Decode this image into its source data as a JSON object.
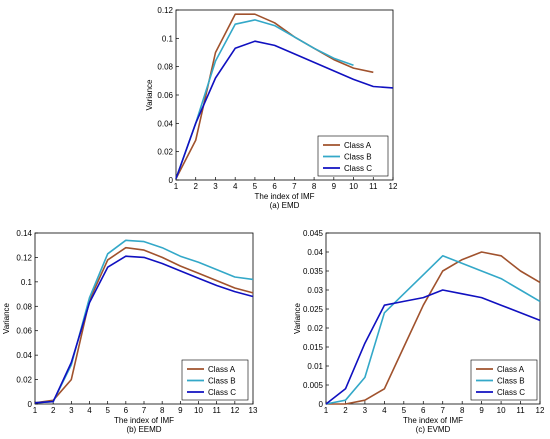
{
  "chart_data": [
    {
      "type": "line",
      "caption": "(a) EMD",
      "xlabel": "The index of IMF",
      "ylabel": "Variance",
      "xlim": [
        1,
        12
      ],
      "ylim": [
        0,
        0.12
      ],
      "xticks": [
        "1",
        "2",
        "3",
        "4",
        "5",
        "6",
        "7",
        "8",
        "9",
        "10",
        "11",
        "12"
      ],
      "yticks": [
        "0",
        "0.02",
        "0.04",
        "0.06",
        "0.08",
        "0.1",
        "0.12"
      ],
      "legend_position": "bottom-right",
      "grid": false,
      "x": [
        1,
        2,
        3,
        4,
        5,
        6,
        7,
        8,
        9,
        10,
        11,
        12
      ],
      "series": [
        {
          "name": "Class A",
          "color": "#a0522d",
          "x": [
            1,
            2,
            3,
            4,
            5,
            6,
            7,
            8,
            9,
            10,
            11
          ],
          "values": [
            0.001,
            0.028,
            0.09,
            0.117,
            0.117,
            0.111,
            0.101,
            0.093,
            0.085,
            0.079,
            0.076
          ]
        },
        {
          "name": "Class B",
          "color": "#33a8c8",
          "x": [
            1,
            2,
            3,
            4,
            5,
            6,
            7,
            8,
            9,
            10
          ],
          "values": [
            0.001,
            0.04,
            0.084,
            0.11,
            0.113,
            0.109,
            0.101,
            0.093,
            0.086,
            0.081
          ]
        },
        {
          "name": "Class C",
          "color": "#1010c0",
          "x": [
            1,
            2,
            3,
            4,
            5,
            6,
            7,
            8,
            9,
            10,
            11,
            12
          ],
          "values": [
            0.001,
            0.04,
            0.072,
            0.093,
            0.098,
            0.095,
            0.089,
            0.083,
            0.077,
            0.071,
            0.066,
            0.065
          ]
        }
      ]
    },
    {
      "type": "line",
      "caption": "(b) EEMD",
      "xlabel": "The index of IMF",
      "ylabel": "Variance",
      "xlim": [
        1,
        13
      ],
      "ylim": [
        0,
        0.14
      ],
      "xticks": [
        "1",
        "2",
        "3",
        "4",
        "5",
        "6",
        "7",
        "8",
        "9",
        "10",
        "11",
        "12",
        "13"
      ],
      "yticks": [
        "0",
        "0.02",
        "0.04",
        "0.06",
        "0.08",
        "0.1",
        "0.12",
        "0.14"
      ],
      "legend_position": "bottom-right",
      "grid": false,
      "series": [
        {
          "name": "Class A",
          "color": "#a0522d",
          "x": [
            1,
            2,
            3,
            4,
            5,
            6,
            7,
            8,
            9,
            10,
            11,
            12,
            13
          ],
          "values": [
            0.001,
            0.003,
            0.02,
            0.085,
            0.118,
            0.128,
            0.126,
            0.12,
            0.113,
            0.107,
            0.101,
            0.095,
            0.091
          ]
        },
        {
          "name": "Class B",
          "color": "#33a8c8",
          "x": [
            1,
            2,
            3,
            4,
            5,
            6,
            7,
            8,
            9,
            10,
            11,
            12,
            13
          ],
          "values": [
            0.001,
            0.002,
            0.032,
            0.087,
            0.123,
            0.134,
            0.133,
            0.128,
            0.121,
            0.116,
            0.11,
            0.104,
            0.102
          ]
        },
        {
          "name": "Class C",
          "color": "#1010c0",
          "x": [
            1,
            2,
            3,
            4,
            5,
            6,
            7,
            8,
            9,
            10,
            11,
            12,
            13
          ],
          "values": [
            0.001,
            0.002,
            0.034,
            0.083,
            0.112,
            0.121,
            0.12,
            0.115,
            0.109,
            0.103,
            0.097,
            0.092,
            0.088
          ]
        }
      ]
    },
    {
      "type": "line",
      "caption": "(c) EVMD",
      "xlabel": "The index of IMF",
      "ylabel": "Variance",
      "xlim": [
        1,
        12
      ],
      "ylim": [
        0,
        0.045
      ],
      "xticks": [
        "1",
        "2",
        "3",
        "4",
        "5",
        "6",
        "7",
        "8",
        "9",
        "10",
        "11",
        "12"
      ],
      "yticks": [
        "0",
        "0.005",
        "0.01",
        "0.015",
        "0.02",
        "0.025",
        "0.03",
        "0.035",
        "0.04",
        "0.045"
      ],
      "legend_position": "bottom-right",
      "grid": false,
      "series": [
        {
          "name": "Class A",
          "color": "#a0522d",
          "x": [
            1,
            2,
            3,
            4,
            5,
            6,
            7,
            8,
            9,
            10,
            11,
            12
          ],
          "values": [
            0.0,
            0.0,
            0.001,
            0.004,
            0.015,
            0.026,
            0.035,
            0.038,
            0.04,
            0.039,
            0.035,
            0.032
          ]
        },
        {
          "name": "Class B",
          "color": "#33a8c8",
          "x": [
            1,
            2,
            3,
            4,
            5,
            6,
            7,
            8,
            9,
            10,
            11,
            12
          ],
          "values": [
            0.0,
            0.001,
            0.007,
            0.024,
            0.029,
            0.034,
            0.039,
            0.037,
            0.035,
            0.033,
            0.03,
            0.027
          ]
        },
        {
          "name": "Class C",
          "color": "#1010c0",
          "x": [
            1,
            2,
            3,
            4,
            5,
            6,
            7,
            8,
            9,
            10,
            11,
            12
          ],
          "values": [
            0.0,
            0.004,
            0.016,
            0.026,
            0.027,
            0.028,
            0.03,
            0.029,
            0.028,
            0.026,
            0.024,
            0.022
          ]
        }
      ]
    }
  ]
}
